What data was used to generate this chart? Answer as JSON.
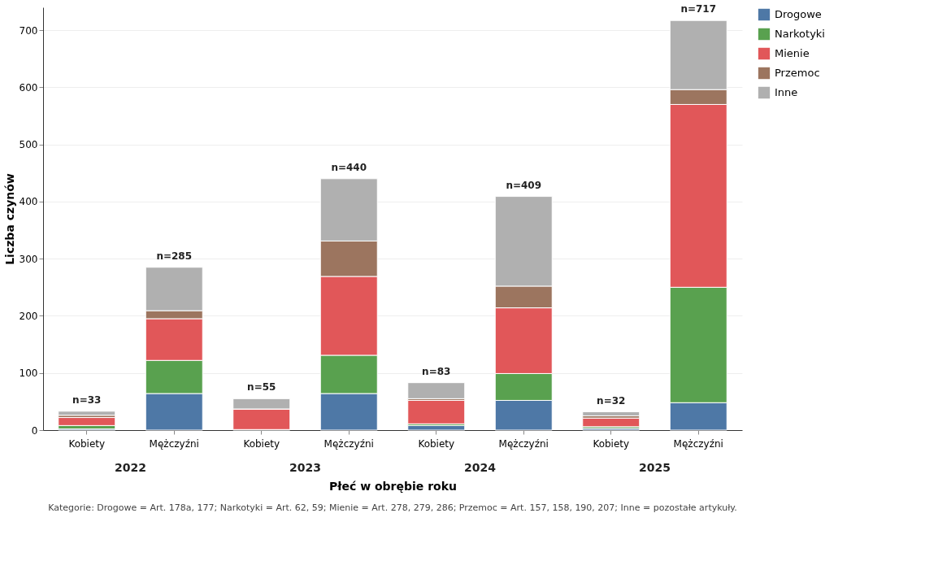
{
  "chart_data": {
    "type": "bar",
    "stacked": true,
    "categories": [
      "Kobiety",
      "Mężczyźni",
      "Kobiety",
      "Mężczyźni",
      "Kobiety",
      "Mężczyźni",
      "Kobiety",
      "Mężczyźni"
    ],
    "xlabel": "Płeć w obrębie roku",
    "ylabel": "Liczba czynów",
    "series": [
      {
        "name": "Drogowe",
        "color": "#4e78a6",
        "values": [
          2,
          64,
          1,
          64,
          8,
          52,
          3,
          48
        ]
      },
      {
        "name": "Narkotyki",
        "color": "#59a14f",
        "values": [
          6,
          58,
          0,
          67,
          3,
          47,
          3,
          202
        ]
      },
      {
        "name": "Mienie",
        "color": "#e15759",
        "values": [
          14,
          73,
          36,
          138,
          41,
          115,
          15,
          320
        ]
      },
      {
        "name": "Przemoc",
        "color": "#9c755f",
        "values": [
          4,
          14,
          0,
          62,
          3,
          38,
          4,
          26
        ]
      },
      {
        "name": "Inne",
        "color": "#b0b0b0",
        "values": [
          7,
          76,
          18,
          109,
          28,
          157,
          7,
          121
        ]
      }
    ],
    "totals": [
      "n=33",
      "n=285",
      "n=55",
      "n=440",
      "n=83",
      "n=409",
      "n=32",
      "n=717"
    ],
    "ylim": [
      0,
      740
    ],
    "yticks": [
      0,
      100,
      200,
      300,
      400,
      500,
      600,
      700
    ],
    "grid": "y",
    "legend": "top right",
    "annotations": [
      "2022",
      "2023",
      "2024",
      "2025",
      "Kategorie: Drogowe = Art. 178a, 177; Narkotyki = Art. 62, 59; Mienie = Art. 278, 279, 286; Przemoc = Art. 157, 158, 190, 207; Inne = pozostałe artykuły."
    ]
  }
}
